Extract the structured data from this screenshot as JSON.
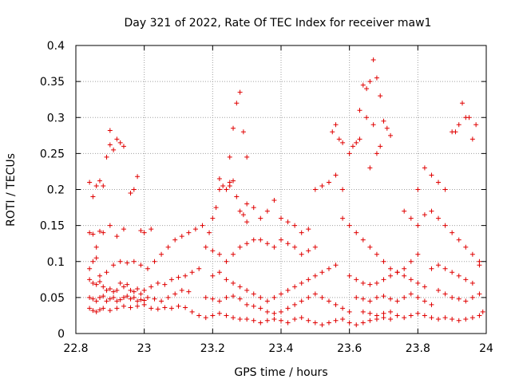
{
  "chart_data": {
    "type": "scatter",
    "title": "Day 321 of 2022, Rate Of TEC Index for receiver maw1",
    "xlabel": "GPS time / hours",
    "ylabel": "ROTI / TECUs",
    "xlim": [
      22.8,
      24
    ],
    "ylim": [
      0,
      0.4
    ],
    "xticks": [
      "22.8",
      "23",
      "23.2",
      "23.4",
      "23.6",
      "23.8",
      "24"
    ],
    "yticks": [
      "0",
      "0.05",
      "0.1",
      "0.15",
      "0.2",
      "0.25",
      "0.3",
      "0.35",
      "0.4"
    ],
    "grid": true,
    "marker": "+",
    "series_color": "#e00000",
    "points": [
      [
        22.84,
        0.21
      ],
      [
        22.85,
        0.19
      ],
      [
        22.86,
        0.205
      ],
      [
        22.87,
        0.212
      ],
      [
        22.88,
        0.205
      ],
      [
        22.89,
        0.245
      ],
      [
        22.9,
        0.262
      ],
      [
        22.9,
        0.282
      ],
      [
        22.91,
        0.255
      ],
      [
        22.92,
        0.27
      ],
      [
        22.93,
        0.265
      ],
      [
        22.94,
        0.26
      ],
      [
        22.96,
        0.195
      ],
      [
        22.97,
        0.2
      ],
      [
        22.98,
        0.218
      ],
      [
        22.84,
        0.14
      ],
      [
        22.85,
        0.138
      ],
      [
        22.86,
        0.12
      ],
      [
        22.87,
        0.142
      ],
      [
        22.88,
        0.14
      ],
      [
        22.9,
        0.15
      ],
      [
        22.92,
        0.135
      ],
      [
        22.94,
        0.145
      ],
      [
        22.99,
        0.143
      ],
      [
        23.0,
        0.14
      ],
      [
        23.02,
        0.145
      ],
      [
        22.84,
        0.09
      ],
      [
        22.85,
        0.1
      ],
      [
        22.86,
        0.105
      ],
      [
        22.87,
        0.08
      ],
      [
        22.89,
        0.085
      ],
      [
        22.91,
        0.095
      ],
      [
        22.93,
        0.1
      ],
      [
        22.95,
        0.098
      ],
      [
        22.97,
        0.1
      ],
      [
        22.99,
        0.095
      ],
      [
        23.01,
        0.09
      ],
      [
        23.03,
        0.1
      ],
      [
        23.05,
        0.11
      ],
      [
        23.07,
        0.12
      ],
      [
        23.09,
        0.13
      ],
      [
        23.11,
        0.135
      ],
      [
        23.13,
        0.14
      ],
      [
        23.15,
        0.145
      ],
      [
        22.84,
        0.075
      ],
      [
        22.85,
        0.07
      ],
      [
        22.86,
        0.068
      ],
      [
        22.87,
        0.072
      ],
      [
        22.88,
        0.065
      ],
      [
        22.89,
        0.06
      ],
      [
        22.9,
        0.062
      ],
      [
        22.91,
        0.058
      ],
      [
        22.92,
        0.06
      ],
      [
        22.93,
        0.07
      ],
      [
        22.94,
        0.065
      ],
      [
        22.95,
        0.068
      ],
      [
        22.96,
        0.06
      ],
      [
        22.97,
        0.058
      ],
      [
        22.98,
        0.062
      ],
      [
        22.99,
        0.055
      ],
      [
        23.0,
        0.06
      ],
      [
        23.02,
        0.065
      ],
      [
        23.04,
        0.07
      ],
      [
        23.06,
        0.068
      ],
      [
        23.08,
        0.075
      ],
      [
        23.1,
        0.078
      ],
      [
        23.12,
        0.08
      ],
      [
        23.14,
        0.085
      ],
      [
        23.16,
        0.09
      ],
      [
        22.84,
        0.05
      ],
      [
        22.85,
        0.048
      ],
      [
        22.86,
        0.045
      ],
      [
        22.87,
        0.05
      ],
      [
        22.88,
        0.052
      ],
      [
        22.89,
        0.045
      ],
      [
        22.9,
        0.048
      ],
      [
        22.91,
        0.05
      ],
      [
        22.92,
        0.045
      ],
      [
        22.93,
        0.047
      ],
      [
        22.94,
        0.05
      ],
      [
        22.95,
        0.052
      ],
      [
        22.96,
        0.048
      ],
      [
        22.97,
        0.05
      ],
      [
        22.98,
        0.045
      ],
      [
        22.99,
        0.047
      ],
      [
        23.0,
        0.046
      ],
      [
        23.01,
        0.05
      ],
      [
        23.03,
        0.048
      ],
      [
        23.05,
        0.045
      ],
      [
        23.07,
        0.05
      ],
      [
        23.09,
        0.055
      ],
      [
        23.11,
        0.06
      ],
      [
        23.13,
        0.058
      ],
      [
        22.84,
        0.035
      ],
      [
        22.85,
        0.032
      ],
      [
        22.86,
        0.03
      ],
      [
        22.87,
        0.033
      ],
      [
        22.88,
        0.035
      ],
      [
        22.9,
        0.032
      ],
      [
        22.92,
        0.035
      ],
      [
        22.94,
        0.038
      ],
      [
        22.96,
        0.036
      ],
      [
        22.98,
        0.038
      ],
      [
        23.0,
        0.04
      ],
      [
        23.02,
        0.035
      ],
      [
        23.04,
        0.034
      ],
      [
        23.06,
        0.036
      ],
      [
        23.08,
        0.035
      ],
      [
        23.1,
        0.038
      ],
      [
        23.12,
        0.036
      ],
      [
        23.14,
        0.03
      ],
      [
        23.16,
        0.025
      ],
      [
        23.18,
        0.022
      ],
      [
        23.2,
        0.025
      ],
      [
        23.22,
        0.028
      ],
      [
        23.24,
        0.025
      ],
      [
        23.26,
        0.022
      ],
      [
        23.28,
        0.02
      ],
      [
        23.17,
        0.15
      ],
      [
        23.19,
        0.14
      ],
      [
        23.2,
        0.16
      ],
      [
        23.21,
        0.175
      ],
      [
        23.22,
        0.2
      ],
      [
        23.23,
        0.205
      ],
      [
        23.24,
        0.2
      ],
      [
        23.25,
        0.21
      ],
      [
        23.26,
        0.212
      ],
      [
        23.22,
        0.215
      ],
      [
        23.25,
        0.205
      ],
      [
        23.27,
        0.19
      ],
      [
        23.28,
        0.17
      ],
      [
        23.29,
        0.165
      ],
      [
        23.3,
        0.155
      ],
      [
        23.25,
        0.245
      ],
      [
        23.26,
        0.285
      ],
      [
        23.27,
        0.32
      ],
      [
        23.28,
        0.335
      ],
      [
        23.29,
        0.28
      ],
      [
        23.3,
        0.245
      ],
      [
        23.18,
        0.12
      ],
      [
        23.2,
        0.115
      ],
      [
        23.22,
        0.11
      ],
      [
        23.24,
        0.1
      ],
      [
        23.26,
        0.11
      ],
      [
        23.28,
        0.12
      ],
      [
        23.3,
        0.125
      ],
      [
        23.32,
        0.13
      ],
      [
        23.34,
        0.13
      ],
      [
        23.36,
        0.125
      ],
      [
        23.38,
        0.12
      ],
      [
        23.4,
        0.13
      ],
      [
        23.42,
        0.125
      ],
      [
        23.44,
        0.12
      ],
      [
        23.46,
        0.11
      ],
      [
        23.48,
        0.115
      ],
      [
        23.5,
        0.12
      ],
      [
        23.3,
        0.18
      ],
      [
        23.32,
        0.175
      ],
      [
        23.34,
        0.16
      ],
      [
        23.36,
        0.17
      ],
      [
        23.38,
        0.185
      ],
      [
        23.4,
        0.16
      ],
      [
        23.42,
        0.155
      ],
      [
        23.44,
        0.15
      ],
      [
        23.46,
        0.14
      ],
      [
        23.48,
        0.145
      ],
      [
        23.5,
        0.2
      ],
      [
        23.52,
        0.205
      ],
      [
        23.54,
        0.21
      ],
      [
        23.56,
        0.22
      ],
      [
        23.58,
        0.2
      ],
      [
        23.2,
        0.08
      ],
      [
        23.22,
        0.085
      ],
      [
        23.24,
        0.075
      ],
      [
        23.26,
        0.07
      ],
      [
        23.28,
        0.065
      ],
      [
        23.3,
        0.06
      ],
      [
        23.32,
        0.055
      ],
      [
        23.34,
        0.05
      ],
      [
        23.36,
        0.045
      ],
      [
        23.38,
        0.05
      ],
      [
        23.4,
        0.055
      ],
      [
        23.42,
        0.06
      ],
      [
        23.44,
        0.065
      ],
      [
        23.46,
        0.07
      ],
      [
        23.48,
        0.075
      ],
      [
        23.5,
        0.08
      ],
      [
        23.52,
        0.085
      ],
      [
        23.54,
        0.09
      ],
      [
        23.56,
        0.095
      ],
      [
        23.18,
        0.05
      ],
      [
        23.2,
        0.048
      ],
      [
        23.22,
        0.045
      ],
      [
        23.24,
        0.05
      ],
      [
        23.26,
        0.052
      ],
      [
        23.28,
        0.048
      ],
      [
        23.3,
        0.04
      ],
      [
        23.32,
        0.038
      ],
      [
        23.34,
        0.035
      ],
      [
        23.36,
        0.03
      ],
      [
        23.38,
        0.028
      ],
      [
        23.4,
        0.03
      ],
      [
        23.42,
        0.035
      ],
      [
        23.44,
        0.04
      ],
      [
        23.46,
        0.045
      ],
      [
        23.48,
        0.05
      ],
      [
        23.5,
        0.055
      ],
      [
        23.52,
        0.05
      ],
      [
        23.54,
        0.045
      ],
      [
        23.56,
        0.04
      ],
      [
        23.58,
        0.035
      ],
      [
        23.6,
        0.03
      ],
      [
        23.3,
        0.02
      ],
      [
        23.32,
        0.018
      ],
      [
        23.34,
        0.015
      ],
      [
        23.36,
        0.018
      ],
      [
        23.38,
        0.02
      ],
      [
        23.4,
        0.018
      ],
      [
        23.42,
        0.015
      ],
      [
        23.44,
        0.02
      ],
      [
        23.46,
        0.022
      ],
      [
        23.48,
        0.018
      ],
      [
        23.5,
        0.015
      ],
      [
        23.52,
        0.012
      ],
      [
        23.54,
        0.015
      ],
      [
        23.56,
        0.018
      ],
      [
        23.58,
        0.02
      ],
      [
        23.6,
        0.015
      ],
      [
        23.62,
        0.012
      ],
      [
        23.64,
        0.015
      ],
      [
        23.66,
        0.018
      ],
      [
        23.68,
        0.02
      ],
      [
        23.7,
        0.022
      ],
      [
        23.72,
        0.02
      ],
      [
        23.55,
        0.28
      ],
      [
        23.56,
        0.29
      ],
      [
        23.57,
        0.27
      ],
      [
        23.58,
        0.265
      ],
      [
        23.6,
        0.25
      ],
      [
        23.61,
        0.26
      ],
      [
        23.62,
        0.265
      ],
      [
        23.63,
        0.27
      ],
      [
        23.64,
        0.345
      ],
      [
        23.65,
        0.34
      ],
      [
        23.66,
        0.35
      ],
      [
        23.67,
        0.38
      ],
      [
        23.68,
        0.355
      ],
      [
        23.69,
        0.33
      ],
      [
        23.7,
        0.295
      ],
      [
        23.71,
        0.285
      ],
      [
        23.72,
        0.275
      ],
      [
        23.63,
        0.31
      ],
      [
        23.65,
        0.3
      ],
      [
        23.67,
        0.29
      ],
      [
        23.68,
        0.25
      ],
      [
        23.69,
        0.26
      ],
      [
        23.66,
        0.23
      ],
      [
        23.58,
        0.16
      ],
      [
        23.6,
        0.15
      ],
      [
        23.62,
        0.14
      ],
      [
        23.64,
        0.13
      ],
      [
        23.66,
        0.12
      ],
      [
        23.68,
        0.11
      ],
      [
        23.7,
        0.1
      ],
      [
        23.72,
        0.09
      ],
      [
        23.74,
        0.085
      ],
      [
        23.76,
        0.09
      ],
      [
        23.78,
        0.1
      ],
      [
        23.8,
        0.11
      ],
      [
        23.6,
        0.08
      ],
      [
        23.62,
        0.075
      ],
      [
        23.64,
        0.07
      ],
      [
        23.66,
        0.068
      ],
      [
        23.68,
        0.07
      ],
      [
        23.7,
        0.075
      ],
      [
        23.72,
        0.08
      ],
      [
        23.74,
        0.085
      ],
      [
        23.76,
        0.08
      ],
      [
        23.78,
        0.075
      ],
      [
        23.8,
        0.07
      ],
      [
        23.82,
        0.065
      ],
      [
        23.62,
        0.05
      ],
      [
        23.64,
        0.048
      ],
      [
        23.66,
        0.045
      ],
      [
        23.68,
        0.05
      ],
      [
        23.7,
        0.052
      ],
      [
        23.72,
        0.048
      ],
      [
        23.74,
        0.045
      ],
      [
        23.76,
        0.05
      ],
      [
        23.78,
        0.055
      ],
      [
        23.8,
        0.05
      ],
      [
        23.82,
        0.045
      ],
      [
        23.84,
        0.04
      ],
      [
        23.64,
        0.03
      ],
      [
        23.66,
        0.028
      ],
      [
        23.68,
        0.025
      ],
      [
        23.7,
        0.028
      ],
      [
        23.72,
        0.03
      ],
      [
        23.74,
        0.025
      ],
      [
        23.76,
        0.022
      ],
      [
        23.78,
        0.025
      ],
      [
        23.8,
        0.028
      ],
      [
        23.82,
        0.025
      ],
      [
        23.84,
        0.022
      ],
      [
        23.86,
        0.02
      ],
      [
        23.88,
        0.022
      ],
      [
        23.9,
        0.02
      ],
      [
        23.92,
        0.018
      ],
      [
        23.94,
        0.02
      ],
      [
        23.96,
        0.022
      ],
      [
        23.98,
        0.025
      ],
      [
        23.99,
        0.03
      ],
      [
        23.76,
        0.17
      ],
      [
        23.78,
        0.16
      ],
      [
        23.8,
        0.15
      ],
      [
        23.82,
        0.165
      ],
      [
        23.84,
        0.17
      ],
      [
        23.86,
        0.16
      ],
      [
        23.88,
        0.15
      ],
      [
        23.9,
        0.14
      ],
      [
        23.92,
        0.13
      ],
      [
        23.94,
        0.12
      ],
      [
        23.96,
        0.11
      ],
      [
        23.98,
        0.1
      ],
      [
        23.8,
        0.2
      ],
      [
        23.82,
        0.23
      ],
      [
        23.84,
        0.22
      ],
      [
        23.86,
        0.21
      ],
      [
        23.88,
        0.2
      ],
      [
        23.9,
        0.28
      ],
      [
        23.91,
        0.28
      ],
      [
        23.92,
        0.29
      ],
      [
        23.93,
        0.32
      ],
      [
        23.94,
        0.3
      ],
      [
        23.95,
        0.3
      ],
      [
        23.96,
        0.27
      ],
      [
        23.97,
        0.29
      ],
      [
        23.84,
        0.09
      ],
      [
        23.86,
        0.095
      ],
      [
        23.88,
        0.09
      ],
      [
        23.9,
        0.085
      ],
      [
        23.92,
        0.08
      ],
      [
        23.94,
        0.075
      ],
      [
        23.96,
        0.07
      ],
      [
        23.98,
        0.095
      ],
      [
        23.86,
        0.06
      ],
      [
        23.88,
        0.055
      ],
      [
        23.9,
        0.05
      ],
      [
        23.92,
        0.048
      ],
      [
        23.94,
        0.045
      ],
      [
        23.96,
        0.05
      ],
      [
        23.98,
        0.055
      ]
    ]
  }
}
